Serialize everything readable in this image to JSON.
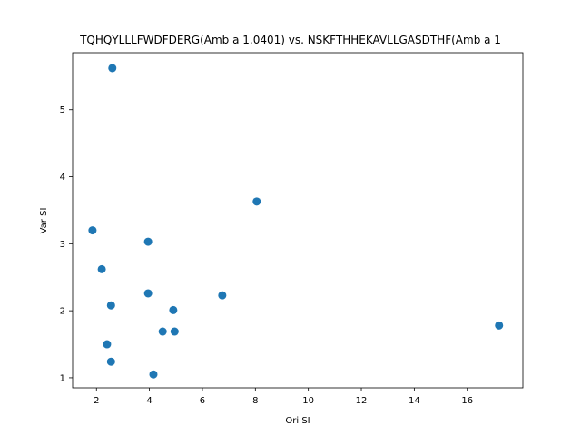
{
  "chart_data": {
    "type": "scatter",
    "title": "TQHQYLLLFWDFDERG(Amb a 1.0401) vs. NSKFTHHEKAVLLGASDTHF(Amb a 1",
    "xlabel": "Ori SI",
    "ylabel": "Var SI",
    "xlim": [
      1.1,
      18.1
    ],
    "ylim": [
      0.85,
      5.85
    ],
    "xticks": [
      2,
      4,
      6,
      8,
      10,
      12,
      14,
      16
    ],
    "yticks": [
      1,
      2,
      3,
      4,
      5
    ],
    "grid": false,
    "marker_color": "#1f77b4",
    "points": [
      {
        "x": 2.6,
        "y": 5.62
      },
      {
        "x": 8.05,
        "y": 3.63
      },
      {
        "x": 1.85,
        "y": 3.2
      },
      {
        "x": 3.95,
        "y": 3.03
      },
      {
        "x": 2.2,
        "y": 2.62
      },
      {
        "x": 3.95,
        "y": 2.26
      },
      {
        "x": 6.75,
        "y": 2.23
      },
      {
        "x": 2.55,
        "y": 2.08
      },
      {
        "x": 4.9,
        "y": 2.01
      },
      {
        "x": 4.5,
        "y": 1.69
      },
      {
        "x": 4.95,
        "y": 1.69
      },
      {
        "x": 17.2,
        "y": 1.78
      },
      {
        "x": 2.4,
        "y": 1.5
      },
      {
        "x": 2.55,
        "y": 1.24
      },
      {
        "x": 4.15,
        "y": 1.05
      }
    ]
  }
}
